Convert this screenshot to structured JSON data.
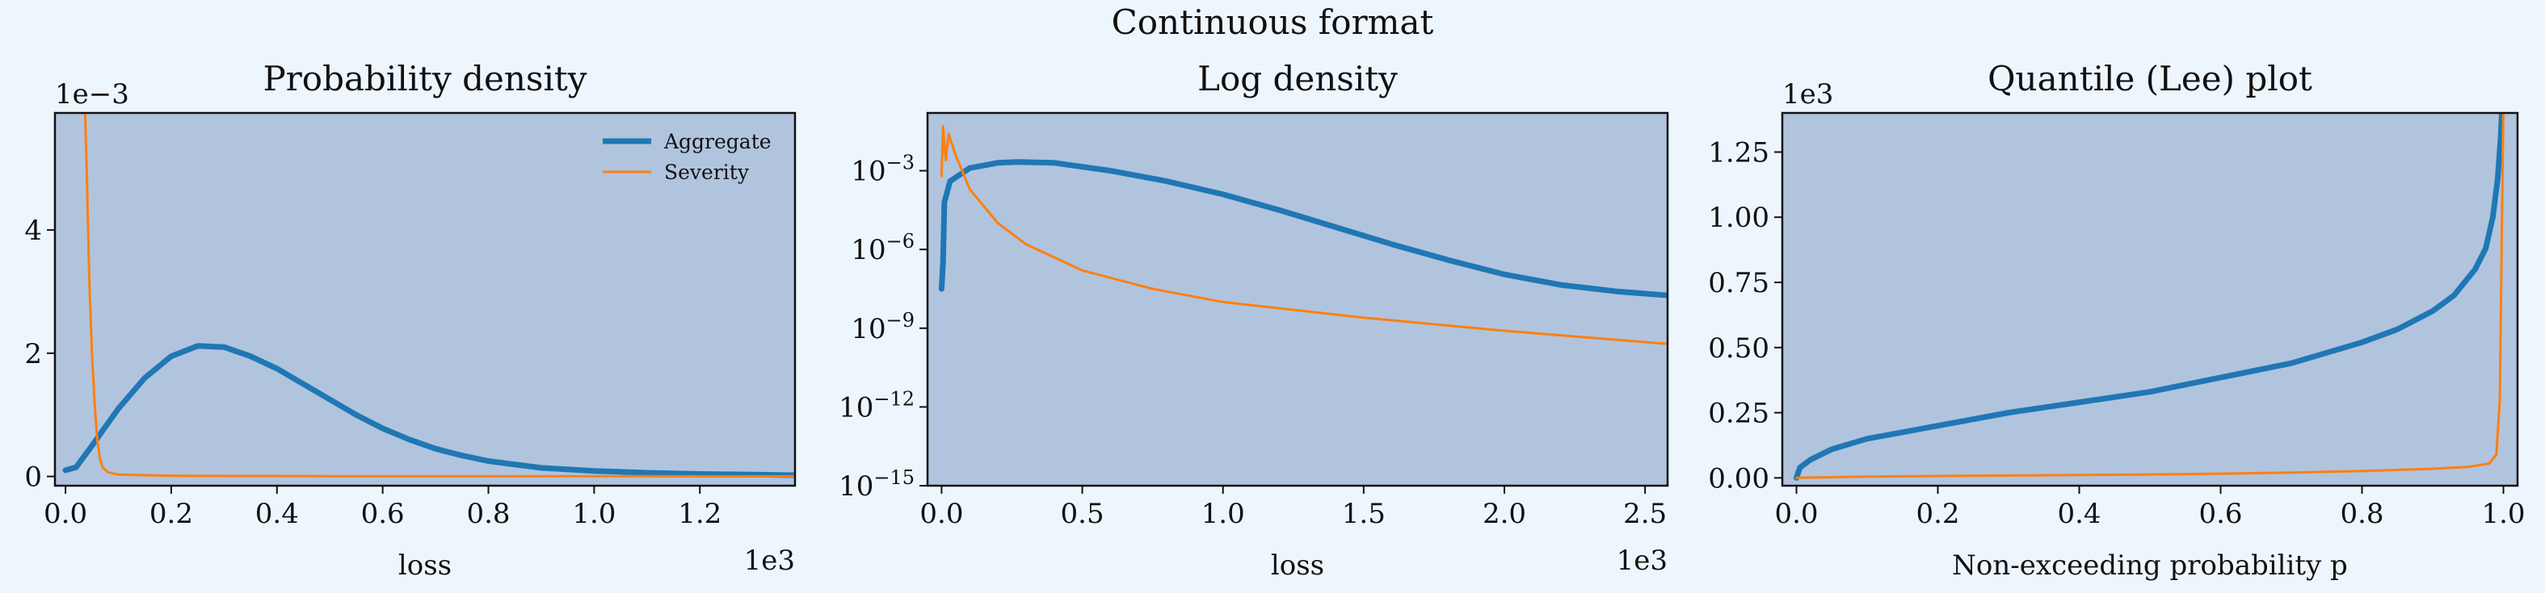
{
  "figure": {
    "suptitle": "Continuous format",
    "background": "#eef6fd",
    "axes_facecolor": "#b0c4de"
  },
  "chart_data": [
    {
      "type": "line",
      "title": "Probability density",
      "xlabel": "loss",
      "ylabel": "",
      "x_offset_text": "1e3",
      "y_offset_text": "1e−3",
      "xlim": [
        -0.02,
        1.38
      ],
      "ylim": [
        -0.15,
        5.9
      ],
      "xticks": [
        0.0,
        0.2,
        0.4,
        0.6,
        0.8,
        1.0,
        1.2
      ],
      "xtick_labels": [
        "0.0",
        "0.2",
        "0.4",
        "0.6",
        "0.8",
        "1.0",
        "1.2"
      ],
      "yticks": [
        0,
        2,
        4
      ],
      "ytick_labels": [
        "0",
        "2",
        "4"
      ],
      "legend": {
        "position": "top-right",
        "entries": [
          "Aggregate",
          "Severity"
        ]
      },
      "series": [
        {
          "name": "Aggregate",
          "color": "#1f77b4",
          "points": [
            [
              0.0,
              0.1
            ],
            [
              0.02,
              0.15
            ],
            [
              0.05,
              0.5
            ],
            [
              0.1,
              1.1
            ],
            [
              0.15,
              1.6
            ],
            [
              0.2,
              1.95
            ],
            [
              0.25,
              2.12
            ],
            [
              0.3,
              2.1
            ],
            [
              0.35,
              1.95
            ],
            [
              0.4,
              1.75
            ],
            [
              0.45,
              1.5
            ],
            [
              0.5,
              1.25
            ],
            [
              0.55,
              1.0
            ],
            [
              0.6,
              0.78
            ],
            [
              0.65,
              0.6
            ],
            [
              0.7,
              0.45
            ],
            [
              0.75,
              0.34
            ],
            [
              0.8,
              0.25
            ],
            [
              0.9,
              0.14
            ],
            [
              1.0,
              0.09
            ],
            [
              1.1,
              0.06
            ],
            [
              1.2,
              0.04
            ],
            [
              1.3,
              0.03
            ],
            [
              1.38,
              0.02
            ]
          ]
        },
        {
          "name": "Severity",
          "color": "#ff7f0e",
          "points": [
            [
              0.035,
              6.5
            ],
            [
              0.04,
              5.0
            ],
            [
              0.045,
              3.2
            ],
            [
              0.05,
              2.0
            ],
            [
              0.055,
              1.2
            ],
            [
              0.06,
              0.6
            ],
            [
              0.065,
              0.3
            ],
            [
              0.07,
              0.15
            ],
            [
              0.08,
              0.07
            ],
            [
              0.1,
              0.03
            ],
            [
              0.2,
              0.01
            ],
            [
              0.5,
              0.005
            ],
            [
              1.0,
              0.003
            ],
            [
              1.38,
              0.002
            ]
          ]
        }
      ]
    },
    {
      "type": "line",
      "title": "Log density",
      "xlabel": "loss",
      "ylabel": "",
      "y_scale": "log",
      "x_offset_text": "1e3",
      "xlim": [
        -0.05,
        2.58
      ],
      "ylim_log10": [
        -15,
        -0.8
      ],
      "xticks": [
        0.0,
        0.5,
        1.0,
        1.5,
        2.0,
        2.5
      ],
      "xtick_labels": [
        "0.0",
        "0.5",
        "1.0",
        "1.5",
        "2.0",
        "2.5"
      ],
      "yticks_log10": [
        -3,
        -6,
        -9,
        -12,
        -15
      ],
      "ytick_bases": [
        "10",
        "10",
        "10",
        "10",
        "10"
      ],
      "ytick_exponents": [
        "−3",
        "−6",
        "−9",
        "−12",
        "−15"
      ],
      "series": [
        {
          "name": "Aggregate",
          "color": "#1f77b4",
          "points_log10": [
            [
              0.0,
              -7.5
            ],
            [
              0.005,
              -6.5
            ],
            [
              0.01,
              -4.2
            ],
            [
              0.03,
              -3.4
            ],
            [
              0.1,
              -2.9
            ],
            [
              0.2,
              -2.7
            ],
            [
              0.27,
              -2.67
            ],
            [
              0.4,
              -2.7
            ],
            [
              0.6,
              -3.0
            ],
            [
              0.8,
              -3.4
            ],
            [
              1.0,
              -3.9
            ],
            [
              1.2,
              -4.5
            ],
            [
              1.4,
              -5.15
            ],
            [
              1.6,
              -5.8
            ],
            [
              1.8,
              -6.4
            ],
            [
              2.0,
              -6.95
            ],
            [
              2.2,
              -7.35
            ],
            [
              2.4,
              -7.6
            ],
            [
              2.58,
              -7.75
            ]
          ]
        },
        {
          "name": "Severity",
          "color": "#ff7f0e",
          "points_log10": [
            [
              0.0,
              -3.2
            ],
            [
              0.005,
              -1.3
            ],
            [
              0.015,
              -2.6
            ],
            [
              0.025,
              -1.6
            ],
            [
              0.05,
              -2.4
            ],
            [
              0.1,
              -3.7
            ],
            [
              0.2,
              -5.0
            ],
            [
              0.3,
              -5.8
            ],
            [
              0.5,
              -6.8
            ],
            [
              0.75,
              -7.5
            ],
            [
              1.0,
              -8.0
            ],
            [
              1.5,
              -8.6
            ],
            [
              2.0,
              -9.1
            ],
            [
              2.58,
              -9.6
            ]
          ]
        }
      ]
    },
    {
      "type": "line",
      "title": "Quantile (Lee) plot",
      "xlabel": "Non-exceeding probability p",
      "ylabel": "",
      "y_offset_text": "1e3",
      "xlim": [
        -0.02,
        1.02
      ],
      "ylim": [
        -0.03,
        1.4
      ],
      "xticks": [
        0.0,
        0.2,
        0.4,
        0.6,
        0.8,
        1.0
      ],
      "xtick_labels": [
        "0.0",
        "0.2",
        "0.4",
        "0.6",
        "0.8",
        "1.0"
      ],
      "yticks": [
        0.0,
        0.25,
        0.5,
        0.75,
        1.0,
        1.25
      ],
      "ytick_labels": [
        "0.00",
        "0.25",
        "0.50",
        "0.75",
        "1.00",
        "1.25"
      ],
      "series": [
        {
          "name": "Aggregate",
          "color": "#1f77b4",
          "points": [
            [
              0.0,
              0.0
            ],
            [
              0.005,
              0.04
            ],
            [
              0.02,
              0.07
            ],
            [
              0.05,
              0.11
            ],
            [
              0.1,
              0.15
            ],
            [
              0.2,
              0.2
            ],
            [
              0.3,
              0.25
            ],
            [
              0.4,
              0.29
            ],
            [
              0.5,
              0.33
            ],
            [
              0.6,
              0.385
            ],
            [
              0.7,
              0.44
            ],
            [
              0.8,
              0.52
            ],
            [
              0.85,
              0.57
            ],
            [
              0.9,
              0.64
            ],
            [
              0.93,
              0.7
            ],
            [
              0.96,
              0.8
            ],
            [
              0.975,
              0.88
            ],
            [
              0.985,
              1.0
            ],
            [
              0.992,
              1.15
            ],
            [
              0.996,
              1.3
            ],
            [
              0.998,
              1.42
            ]
          ]
        },
        {
          "name": "Severity",
          "color": "#ff7f0e",
          "points": [
            [
              0.0,
              0.0
            ],
            [
              0.1,
              0.005
            ],
            [
              0.2,
              0.007
            ],
            [
              0.3,
              0.009
            ],
            [
              0.4,
              0.011
            ],
            [
              0.5,
              0.013
            ],
            [
              0.6,
              0.016
            ],
            [
              0.7,
              0.02
            ],
            [
              0.8,
              0.026
            ],
            [
              0.9,
              0.035
            ],
            [
              0.95,
              0.042
            ],
            [
              0.98,
              0.055
            ],
            [
              0.99,
              0.09
            ],
            [
              0.995,
              0.3
            ],
            [
              0.998,
              1.0
            ],
            [
              1.0,
              1.42
            ]
          ]
        }
      ]
    }
  ]
}
